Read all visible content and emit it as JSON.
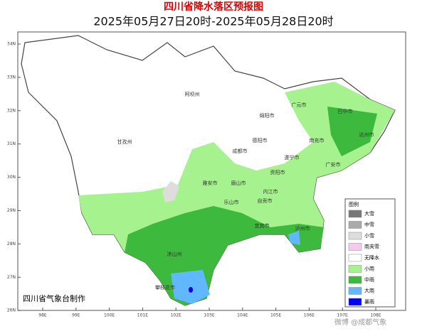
{
  "title": "四川省降水落区预报图",
  "subtitle": "2025年05月27日20时-2025年05月28日20时",
  "longitude_labels": [
    "98E",
    "99E",
    "100E",
    "101E",
    "102E",
    "103E",
    "104E",
    "105E",
    "106E",
    "107E",
    "108E"
  ],
  "latitude_labels": [
    "34N",
    "33N",
    "32N",
    "31N",
    "30N",
    "29N",
    "28N",
    "27N",
    "26N"
  ],
  "regions": [
    "阿坝州",
    "甘孜州",
    "广元市",
    "巴中市",
    "绵阳市",
    "达州市",
    "南充市",
    "德阳市",
    "成都市",
    "遂宁市",
    "广安市",
    "资阳市",
    "雅安市",
    "眉山市",
    "内江市",
    "乐山市",
    "自贡市",
    "宜宾市",
    "泸州市",
    "凉山州",
    "攀枝花市"
  ],
  "legend": {
    "title": "图例",
    "items": [
      {
        "label": "大雪",
        "color": "#777777"
      },
      {
        "label": "中雪",
        "color": "#aaaaaa"
      },
      {
        "label": "小雪",
        "color": "#dddddd"
      },
      {
        "label": "雨夹雪",
        "color": "#f8c8f0"
      },
      {
        "label": "无降水",
        "color": "#ffffff"
      },
      {
        "label": "小雨",
        "color": "#a6f28f"
      },
      {
        "label": "中雨",
        "color": "#3dba3d"
      },
      {
        "label": "大雨",
        "color": "#61b8ff"
      },
      {
        "label": "暴雨",
        "color": "#0000fe"
      }
    ]
  },
  "credit": "四川省气象台制作",
  "watermark": "微博 @成都气象"
}
